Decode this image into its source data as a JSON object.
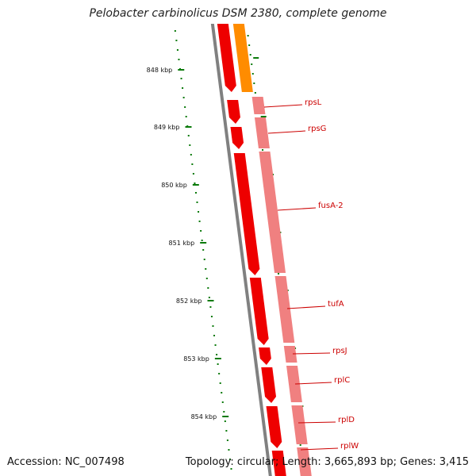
{
  "title": "Pelobacter carbinolicus DSM 2380, complete genome",
  "footer": {
    "accession": "Accession: NC_007498",
    "topology": "Topology: circular; Length: 3,665,893 bp; Genes: 3,415"
  },
  "ruler": {
    "ticks": [
      "848 kbp",
      "849 kbp",
      "850 kbp",
      "851 kbp",
      "852 kbp",
      "853 kbp",
      "854 kbp"
    ]
  },
  "genes": [
    {
      "label": "rpsL"
    },
    {
      "label": "rpsG"
    },
    {
      "label": "fusA-2"
    },
    {
      "label": "tufA"
    },
    {
      "label": "rpsJ"
    },
    {
      "label": "rplC"
    },
    {
      "label": "rplD"
    },
    {
      "label": "rplW"
    }
  ],
  "colors": {
    "cds": "#ee0000",
    "cds_light": "#f08080",
    "orange": "#ff8c00",
    "backbone": "#808080",
    "tick": "#0a7a0a",
    "label": "#cc0000"
  }
}
